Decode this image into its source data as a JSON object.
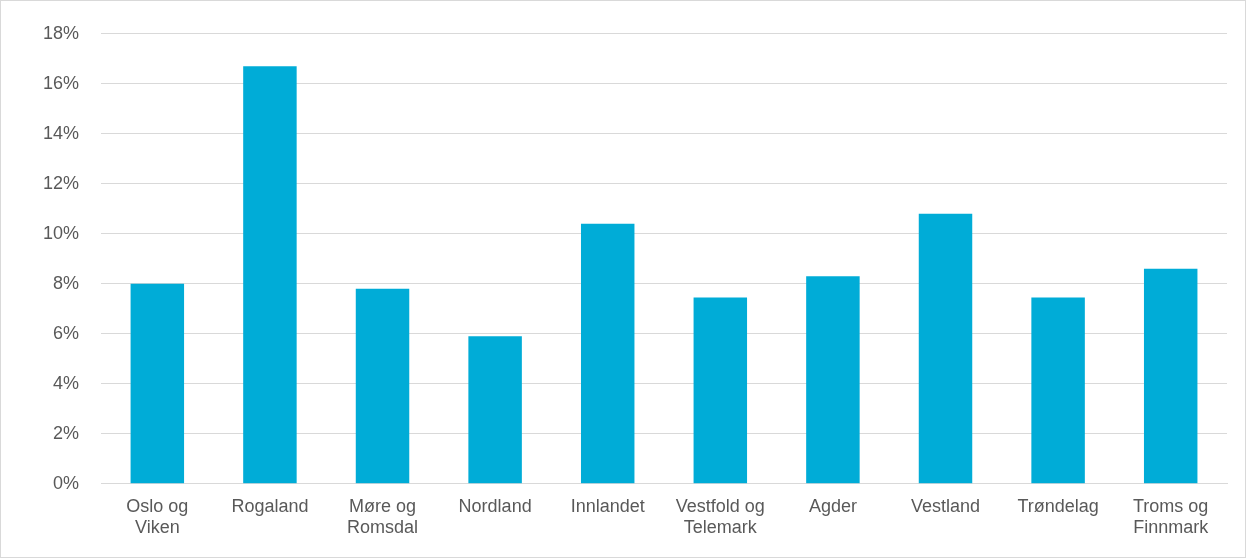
{
  "chart_data": {
    "type": "bar",
    "categories": [
      "Oslo og Viken",
      "Rogaland",
      "Møre og Romsdal",
      "Nordland",
      "Innlandet",
      "Vestfold og Telemark",
      "Agder",
      "Vestland",
      "Trøndelag",
      "Troms og Finnmark"
    ],
    "values": [
      8.0,
      16.7,
      7.8,
      5.9,
      10.4,
      7.45,
      8.3,
      10.8,
      7.45,
      8.6
    ],
    "color": "#00acd7",
    "ylim": [
      0,
      18
    ],
    "yticks": [
      {
        "value": 0,
        "label": "0%"
      },
      {
        "value": 2,
        "label": "2%"
      },
      {
        "value": 4,
        "label": "4%"
      },
      {
        "value": 6,
        "label": "6%"
      },
      {
        "value": 8,
        "label": "8%"
      },
      {
        "value": 10,
        "label": "10%"
      },
      {
        "value": 12,
        "label": "12%"
      },
      {
        "value": 14,
        "label": "14%"
      },
      {
        "value": 16,
        "label": "16%"
      },
      {
        "value": 18,
        "label": "18%"
      }
    ],
    "grid": "y"
  }
}
